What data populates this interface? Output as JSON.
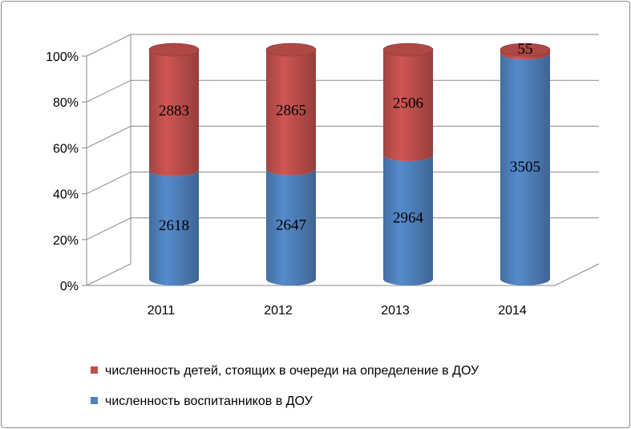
{
  "chart_data": {
    "type": "bar",
    "stacked": "percent",
    "style": "3d-cylinder",
    "categories": [
      "2011",
      "2012",
      "2013",
      "2014"
    ],
    "series": [
      {
        "name": "численность воспитанников в ДОУ",
        "color": "#4f81bd",
        "values": [
          2618,
          2647,
          2964,
          3505
        ]
      },
      {
        "name": "численность детей, стоящих в очереди на определение в ДОУ",
        "color": "#c0504d",
        "values": [
          2883,
          2865,
          2506,
          55
        ]
      }
    ],
    "y_ticks": [
      "0%",
      "20%",
      "40%",
      "60%",
      "80%",
      "100%"
    ],
    "ylim": [
      0,
      100
    ],
    "grid": true,
    "legend_position": "bottom"
  }
}
